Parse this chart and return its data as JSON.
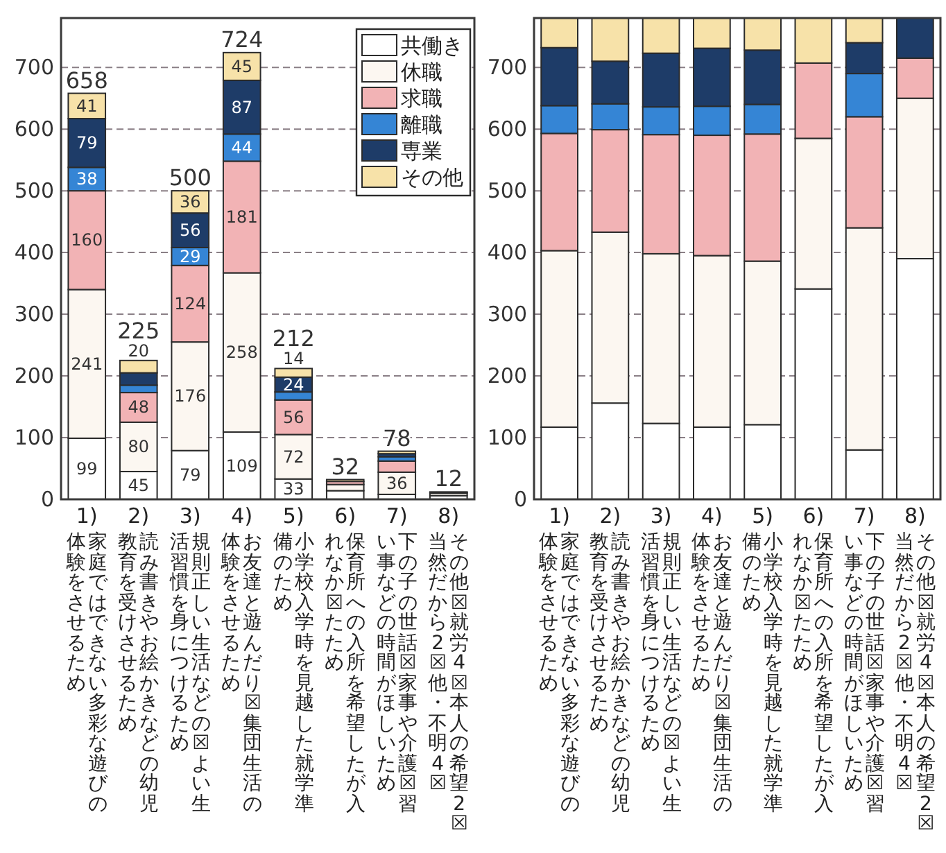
{
  "chart_data": [
    {
      "type": "bar",
      "stacked": true,
      "categories": [
        "1)\n家庭ではできない多彩な遊びの体験をさせるため",
        "2)\n読み書きやお絵かきなどの幼児教育を受けさせるため",
        "3)\n規則正しい生活などの☒よい生活習慣を身につけるため",
        "4)\nお友達と遊んだり☒集団生活の体験をさせるため",
        "5)\n小学校入学時を見越した就学準備のため",
        "6)\n保育所への入所を希望したが入れなか☒たため",
        "7)\n下の子の世話☒家事や介護☒習い事などの時間がほしいため",
        "8)\nその他☒就労4☒本人の希望2☒当然だから2☒他・不明4☒"
      ],
      "series": [
        {
          "name": "共働き",
          "color": "#ffffff",
          "values": [
            99,
            45,
            79,
            109,
            33,
            14,
            8,
            6
          ],
          "value_labels": [
            "99",
            "45",
            "79",
            "109",
            "33",
            null,
            null,
            null
          ]
        },
        {
          "name": "休職",
          "color": "#fcf7f1",
          "values": [
            241,
            80,
            176,
            258,
            72,
            10,
            36,
            4
          ],
          "value_labels": [
            "241",
            "80",
            "176",
            "258",
            "72",
            null,
            "36",
            null
          ]
        },
        {
          "name": "求職",
          "color": "#f2b3b5",
          "values": [
            160,
            48,
            124,
            181,
            56,
            5,
            18,
            1
          ],
          "value_labels": [
            "160",
            "48",
            "124",
            "181",
            "56",
            null,
            null,
            null
          ]
        },
        {
          "name": "離職",
          "color": "#3585d5",
          "values": [
            38,
            12,
            29,
            44,
            13,
            0,
            7,
            0
          ],
          "value_labels": [
            "38",
            null,
            "29",
            "44",
            null,
            null,
            null,
            null
          ]
        },
        {
          "name": "専業",
          "color": "#1e3c68",
          "values": [
            79,
            20,
            56,
            87,
            24,
            0,
            5,
            1
          ],
          "value_labels": [
            "79",
            null,
            "56",
            "87",
            "24",
            null,
            null,
            null
          ]
        },
        {
          "name": "その他",
          "color": "#f7e2a9",
          "values": [
            41,
            20,
            36,
            45,
            14,
            3,
            4,
            0
          ],
          "value_labels": [
            "41",
            "20",
            "36",
            "45",
            "14",
            null,
            null,
            null
          ]
        }
      ],
      "totals": [
        "658",
        "225",
        "500",
        "724",
        "212",
        "32",
        "78",
        "12"
      ],
      "ylim": [
        0,
        780
      ],
      "yticks": [
        0,
        100,
        200,
        300,
        400,
        500,
        600,
        700
      ],
      "grid": "y",
      "legend": "top right"
    },
    {
      "type": "bar",
      "stacked": true,
      "categories": [
        "1)\n家庭ではできない多彩な遊びの体験をさせるため",
        "2)\n読み書きやお絵かきなどの幼児教育を受けさせるため",
        "3)\n規則正しい生活などの☒よい生活習慣を身につけるため",
        "4)\nお友達と遊んだり☒集団生活の体験をさせるため",
        "5)\n小学校入学時を見越した就学準備のため",
        "6)\n保育所への入所を希望したが入れなか☒たため",
        "7)\n下の子の世話☒家事や介護☒習い事などの時間がほしいため",
        "8)\nその他☒就労4☒本人の希望2☒当然だから2☒他・不明4☒"
      ],
      "series": [
        {
          "color": "#ffffff",
          "values": [
            117,
            156,
            123,
            117,
            121,
            341,
            80,
            390
          ]
        },
        {
          "color": "#fcf7f1",
          "values": [
            286,
            277,
            275,
            278,
            265,
            244,
            360,
            260
          ]
        },
        {
          "color": "#f2b3b5",
          "values": [
            190,
            166,
            193,
            195,
            206,
            122,
            180,
            65
          ]
        },
        {
          "color": "#3585d5",
          "values": [
            45,
            42,
            45,
            47,
            48,
            0,
            70,
            0
          ]
        },
        {
          "color": "#1e3c68",
          "values": [
            94,
            69,
            87,
            94,
            88,
            0,
            50,
            65
          ]
        },
        {
          "color": "#f7e2a9",
          "values": [
            48,
            70,
            57,
            49,
            52,
            73,
            40,
            0
          ]
        }
      ],
      "ylim": [
        0,
        780
      ],
      "yticks": [
        0,
        100,
        200,
        300,
        400,
        500,
        600,
        700
      ],
      "grid": "y"
    }
  ]
}
